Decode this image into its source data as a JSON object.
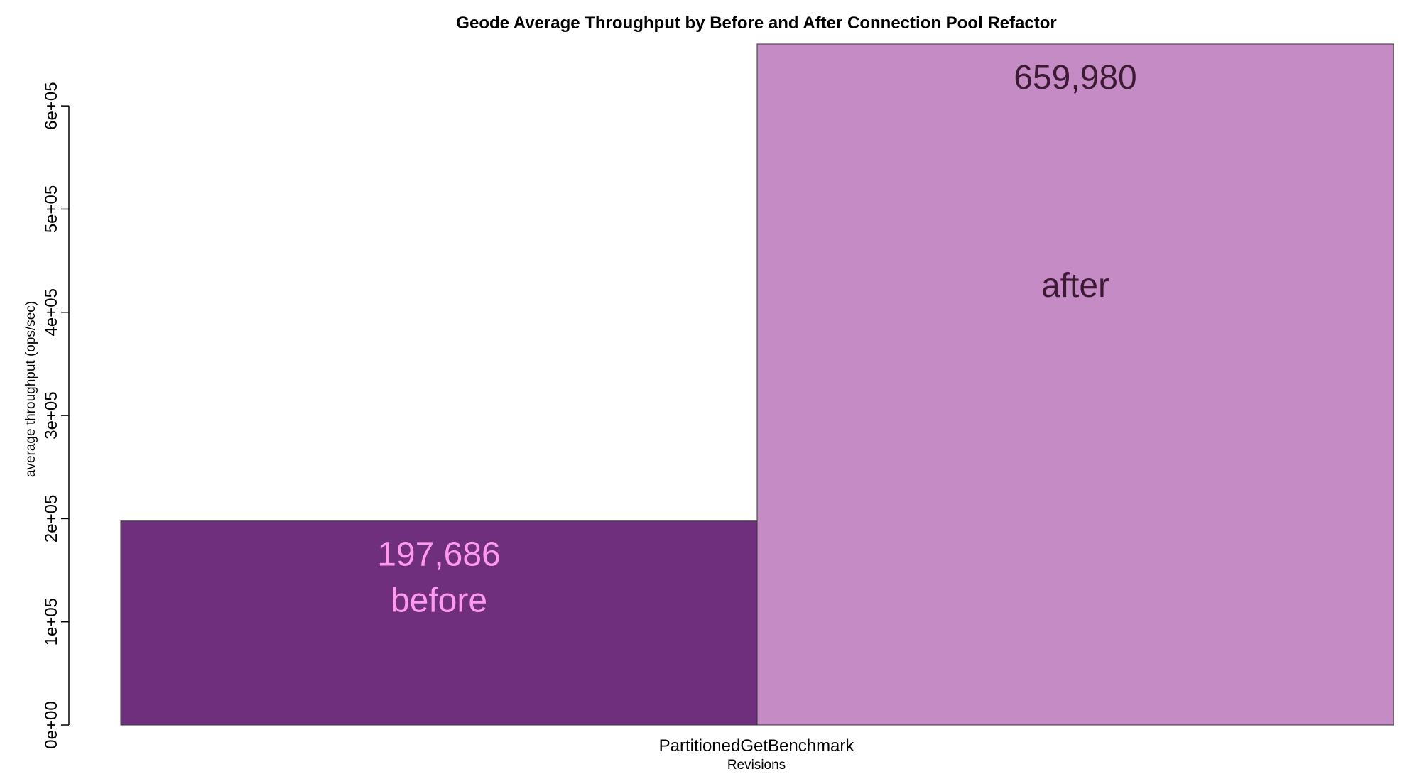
{
  "chart_data": {
    "type": "bar",
    "title": "Geode Average Throughput by Before and After Connection Pool Refactor",
    "xlabel": "Revisions",
    "ylabel": "average throughput (ops/sec)",
    "categories": [
      "PartitionedGetBenchmark"
    ],
    "series": [
      {
        "name": "before",
        "values": [
          197686
        ],
        "value_label": "197,686",
        "color": "#6f2f7d",
        "text_color": "#ff99ee"
      },
      {
        "name": "after",
        "values": [
          659980
        ],
        "value_label": "659,980",
        "color": "#c58bc5",
        "text_color": "#3d1a33"
      }
    ],
    "ylim": [
      0,
      659980
    ],
    "yticks": [
      0,
      100000,
      200000,
      300000,
      400000,
      500000,
      600000
    ],
    "ytick_labels": [
      "0e+00",
      "1e+05",
      "2e+05",
      "3e+05",
      "4e+05",
      "5e+05",
      "6e+05"
    ],
    "grid": false,
    "legend": "none"
  }
}
